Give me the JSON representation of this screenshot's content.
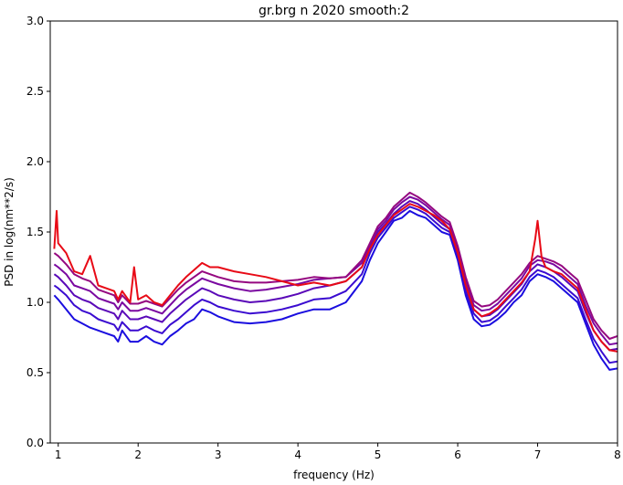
{
  "chart_data": {
    "type": "line",
    "title": "gr.brg n 2020 smooth:2",
    "xlabel": "frequency (Hz)",
    "ylabel": "PSD in log(nm**2/s)",
    "xlim": [
      0.9,
      8.0
    ],
    "ylim": [
      0.0,
      3.0
    ],
    "xticks": [
      1,
      2,
      3,
      4,
      5,
      6,
      7,
      8
    ],
    "yticks": [
      0.0,
      0.5,
      1.0,
      1.5,
      2.0,
      2.5,
      3.0
    ],
    "grid": false,
    "legend": "none",
    "series": [
      {
        "color": "#1a0ddf",
        "x": [
          0.95,
          1.0,
          1.1,
          1.2,
          1.3,
          1.4,
          1.5,
          1.6,
          1.7,
          1.75,
          1.8,
          1.9,
          2.0,
          2.1,
          2.2,
          2.3,
          2.4,
          2.5,
          2.6,
          2.7,
          2.8,
          2.9,
          3.0,
          3.2,
          3.4,
          3.6,
          3.8,
          4.0,
          4.2,
          4.4,
          4.6,
          4.8,
          4.9,
          5.0,
          5.1,
          5.2,
          5.3,
          5.4,
          5.5,
          5.6,
          5.7,
          5.8,
          5.9,
          6.0,
          6.1,
          6.2,
          6.3,
          6.4,
          6.5,
          6.6,
          6.7,
          6.8,
          6.9,
          7.0,
          7.1,
          7.2,
          7.3,
          7.4,
          7.5,
          7.6,
          7.7,
          7.8,
          7.9,
          8.0
        ],
        "y": [
          1.05,
          1.02,
          0.95,
          0.88,
          0.85,
          0.82,
          0.8,
          0.78,
          0.76,
          0.72,
          0.8,
          0.72,
          0.72,
          0.76,
          0.72,
          0.7,
          0.76,
          0.8,
          0.85,
          0.88,
          0.95,
          0.93,
          0.9,
          0.86,
          0.85,
          0.86,
          0.88,
          0.92,
          0.95,
          0.95,
          1.0,
          1.15,
          1.3,
          1.42,
          1.5,
          1.58,
          1.6,
          1.65,
          1.62,
          1.6,
          1.55,
          1.5,
          1.48,
          1.3,
          1.05,
          0.88,
          0.83,
          0.84,
          0.88,
          0.93,
          1.0,
          1.05,
          1.15,
          1.2,
          1.18,
          1.15,
          1.1,
          1.05,
          1.0,
          0.85,
          0.7,
          0.6,
          0.52,
          0.53
        ]
      },
      {
        "color": "#3a0bd0",
        "x": [
          0.95,
          1.0,
          1.1,
          1.2,
          1.3,
          1.4,
          1.5,
          1.6,
          1.7,
          1.75,
          1.8,
          1.9,
          2.0,
          2.1,
          2.2,
          2.3,
          2.4,
          2.5,
          2.6,
          2.7,
          2.8,
          2.9,
          3.0,
          3.2,
          3.4,
          3.6,
          3.8,
          4.0,
          4.2,
          4.4,
          4.6,
          4.8,
          4.9,
          5.0,
          5.1,
          5.2,
          5.3,
          5.4,
          5.5,
          5.6,
          5.7,
          5.8,
          5.9,
          6.0,
          6.1,
          6.2,
          6.3,
          6.4,
          6.5,
          6.6,
          6.7,
          6.8,
          6.9,
          7.0,
          7.1,
          7.2,
          7.3,
          7.4,
          7.5,
          7.6,
          7.7,
          7.8,
          7.9,
          8.0
        ],
        "y": [
          1.12,
          1.1,
          1.05,
          0.98,
          0.94,
          0.92,
          0.88,
          0.86,
          0.84,
          0.8,
          0.86,
          0.8,
          0.8,
          0.83,
          0.8,
          0.78,
          0.84,
          0.88,
          0.93,
          0.98,
          1.02,
          1.0,
          0.97,
          0.94,
          0.92,
          0.93,
          0.95,
          0.98,
          1.02,
          1.03,
          1.08,
          1.2,
          1.35,
          1.46,
          1.53,
          1.6,
          1.64,
          1.68,
          1.66,
          1.63,
          1.58,
          1.53,
          1.5,
          1.33,
          1.08,
          0.92,
          0.86,
          0.87,
          0.91,
          0.97,
          1.03,
          1.09,
          1.18,
          1.23,
          1.21,
          1.18,
          1.13,
          1.08,
          1.03,
          0.88,
          0.74,
          0.65,
          0.57,
          0.58
        ]
      },
      {
        "color": "#5a09b8",
        "x": [
          0.95,
          1.0,
          1.1,
          1.2,
          1.3,
          1.4,
          1.5,
          1.6,
          1.7,
          1.75,
          1.8,
          1.9,
          2.0,
          2.1,
          2.2,
          2.3,
          2.4,
          2.5,
          2.6,
          2.7,
          2.8,
          2.9,
          3.0,
          3.2,
          3.4,
          3.6,
          3.8,
          4.0,
          4.2,
          4.4,
          4.6,
          4.8,
          4.9,
          5.0,
          5.1,
          5.2,
          5.3,
          5.4,
          5.5,
          5.6,
          5.7,
          5.8,
          5.9,
          6.0,
          6.1,
          6.2,
          6.3,
          6.4,
          6.5,
          6.6,
          6.7,
          6.8,
          6.9,
          7.0,
          7.1,
          7.2,
          7.3,
          7.4,
          7.5,
          7.6,
          7.7,
          7.8,
          7.9,
          8.0
        ],
        "y": [
          1.2,
          1.18,
          1.12,
          1.05,
          1.02,
          1.0,
          0.96,
          0.94,
          0.92,
          0.88,
          0.94,
          0.88,
          0.88,
          0.9,
          0.88,
          0.86,
          0.92,
          0.97,
          1.02,
          1.06,
          1.1,
          1.08,
          1.05,
          1.02,
          1.0,
          1.01,
          1.03,
          1.06,
          1.1,
          1.12,
          1.15,
          1.25,
          1.38,
          1.5,
          1.56,
          1.63,
          1.68,
          1.72,
          1.7,
          1.66,
          1.61,
          1.56,
          1.52,
          1.36,
          1.12,
          0.95,
          0.9,
          0.91,
          0.95,
          1.01,
          1.07,
          1.13,
          1.22,
          1.27,
          1.25,
          1.22,
          1.18,
          1.13,
          1.08,
          0.93,
          0.8,
          0.72,
          0.66,
          0.67
        ]
      },
      {
        "color": "#7a08a0",
        "x": [
          0.95,
          1.0,
          1.1,
          1.2,
          1.3,
          1.4,
          1.5,
          1.6,
          1.7,
          1.75,
          1.8,
          1.9,
          2.0,
          2.1,
          2.2,
          2.3,
          2.4,
          2.5,
          2.6,
          2.7,
          2.8,
          2.9,
          3.0,
          3.2,
          3.4,
          3.6,
          3.8,
          4.0,
          4.2,
          4.4,
          4.6,
          4.8,
          4.9,
          5.0,
          5.1,
          5.2,
          5.3,
          5.4,
          5.5,
          5.6,
          5.7,
          5.8,
          5.9,
          6.0,
          6.1,
          6.2,
          6.3,
          6.4,
          6.5,
          6.6,
          6.7,
          6.8,
          6.9,
          7.0,
          7.1,
          7.2,
          7.3,
          7.4,
          7.5,
          7.6,
          7.7,
          7.8,
          7.9,
          8.0
        ],
        "y": [
          1.27,
          1.25,
          1.2,
          1.12,
          1.1,
          1.08,
          1.03,
          1.01,
          0.99,
          0.95,
          1.0,
          0.94,
          0.94,
          0.96,
          0.94,
          0.92,
          0.98,
          1.04,
          1.09,
          1.13,
          1.17,
          1.15,
          1.13,
          1.1,
          1.08,
          1.09,
          1.11,
          1.13,
          1.16,
          1.17,
          1.18,
          1.28,
          1.4,
          1.52,
          1.58,
          1.66,
          1.71,
          1.75,
          1.73,
          1.69,
          1.64,
          1.59,
          1.55,
          1.38,
          1.15,
          0.98,
          0.94,
          0.95,
          0.99,
          1.05,
          1.11,
          1.17,
          1.26,
          1.3,
          1.29,
          1.27,
          1.23,
          1.18,
          1.13,
          0.98,
          0.85,
          0.77,
          0.7,
          0.71
        ]
      },
      {
        "color": "#950880",
        "x": [
          0.95,
          1.0,
          1.1,
          1.2,
          1.3,
          1.4,
          1.5,
          1.6,
          1.7,
          1.75,
          1.8,
          1.9,
          2.0,
          2.1,
          2.2,
          2.3,
          2.4,
          2.5,
          2.6,
          2.7,
          2.8,
          2.9,
          3.0,
          3.2,
          3.4,
          3.6,
          3.8,
          4.0,
          4.2,
          4.4,
          4.6,
          4.8,
          4.9,
          5.0,
          5.1,
          5.2,
          5.3,
          5.4,
          5.5,
          5.6,
          5.7,
          5.8,
          5.9,
          6.0,
          6.1,
          6.2,
          6.3,
          6.4,
          6.5,
          6.6,
          6.7,
          6.8,
          6.9,
          7.0,
          7.1,
          7.2,
          7.3,
          7.4,
          7.5,
          7.6,
          7.7,
          7.8,
          7.9,
          8.0
        ],
        "y": [
          1.35,
          1.33,
          1.27,
          1.2,
          1.17,
          1.15,
          1.09,
          1.07,
          1.05,
          1.0,
          1.05,
          0.99,
          0.99,
          1.01,
          0.99,
          0.97,
          1.03,
          1.09,
          1.14,
          1.18,
          1.22,
          1.2,
          1.18,
          1.15,
          1.14,
          1.14,
          1.15,
          1.16,
          1.18,
          1.17,
          1.18,
          1.3,
          1.42,
          1.54,
          1.6,
          1.68,
          1.73,
          1.78,
          1.75,
          1.71,
          1.66,
          1.61,
          1.57,
          1.4,
          1.18,
          1.01,
          0.97,
          0.98,
          1.02,
          1.08,
          1.14,
          1.2,
          1.28,
          1.33,
          1.31,
          1.29,
          1.26,
          1.21,
          1.16,
          1.02,
          0.88,
          0.8,
          0.74,
          0.76
        ]
      },
      {
        "color": "#e80a16",
        "x": [
          0.95,
          0.98,
          1.0,
          1.1,
          1.2,
          1.3,
          1.4,
          1.5,
          1.6,
          1.7,
          1.75,
          1.8,
          1.9,
          1.95,
          2.0,
          2.1,
          2.2,
          2.3,
          2.4,
          2.5,
          2.6,
          2.7,
          2.8,
          2.9,
          3.0,
          3.2,
          3.4,
          3.6,
          3.8,
          4.0,
          4.2,
          4.4,
          4.6,
          4.8,
          4.9,
          5.0,
          5.1,
          5.2,
          5.3,
          5.4,
          5.5,
          5.6,
          5.7,
          5.8,
          5.9,
          6.0,
          6.1,
          6.2,
          6.3,
          6.4,
          6.5,
          6.6,
          6.7,
          6.8,
          6.9,
          6.97,
          7.0,
          7.05,
          7.1,
          7.2,
          7.3,
          7.4,
          7.5,
          7.6,
          7.7,
          7.8,
          7.9,
          8.0
        ],
        "y": [
          1.38,
          1.65,
          1.42,
          1.35,
          1.22,
          1.2,
          1.33,
          1.12,
          1.1,
          1.08,
          1.02,
          1.08,
          1.0,
          1.25,
          1.02,
          1.05,
          1.0,
          0.98,
          1.05,
          1.12,
          1.18,
          1.23,
          1.28,
          1.25,
          1.25,
          1.22,
          1.2,
          1.18,
          1.15,
          1.12,
          1.14,
          1.12,
          1.15,
          1.25,
          1.38,
          1.48,
          1.55,
          1.62,
          1.66,
          1.7,
          1.68,
          1.65,
          1.62,
          1.58,
          1.52,
          1.35,
          1.12,
          0.95,
          0.9,
          0.92,
          0.96,
          1.02,
          1.08,
          1.14,
          1.22,
          1.45,
          1.58,
          1.32,
          1.25,
          1.22,
          1.2,
          1.15,
          1.1,
          0.95,
          0.8,
          0.72,
          0.66,
          0.65
        ]
      }
    ]
  }
}
